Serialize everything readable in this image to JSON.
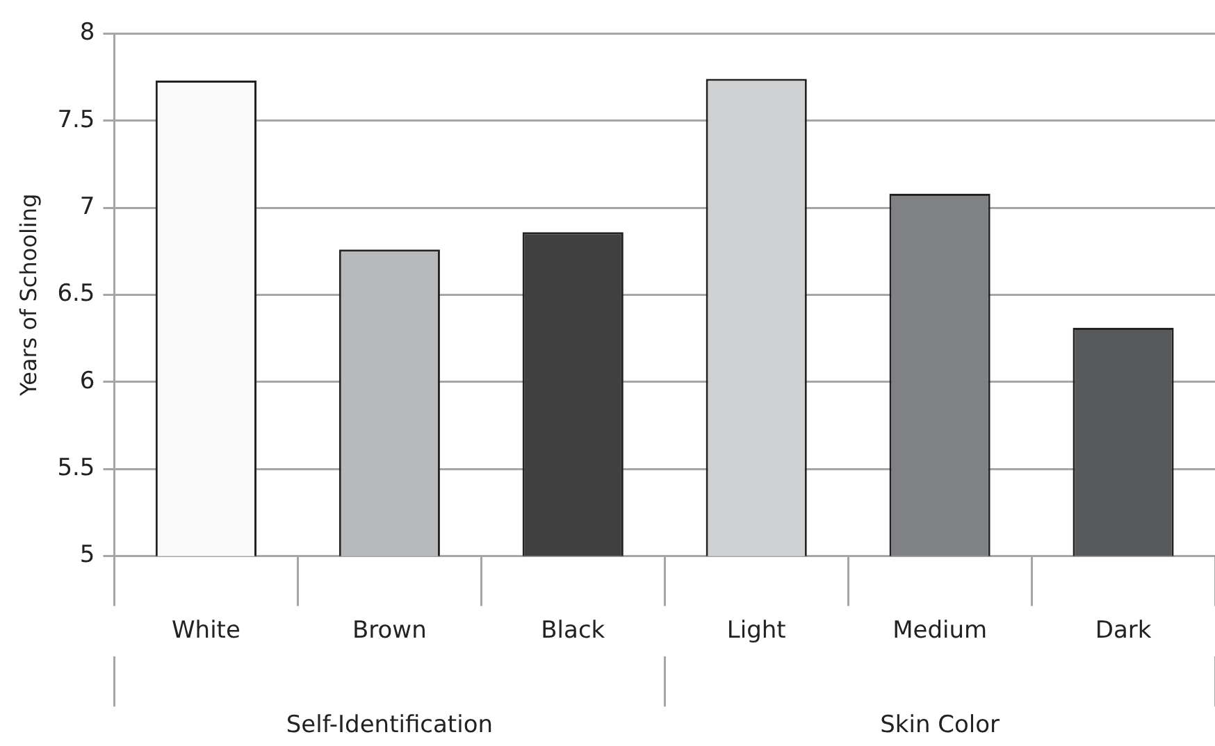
{
  "chart_data": {
    "type": "bar",
    "ylabel": "Years of Schooling",
    "categories": [
      "White",
      "Brown",
      "Black",
      "Light",
      "Medium",
      "Dark"
    ],
    "values": [
      7.73,
      6.76,
      6.86,
      7.74,
      7.08,
      6.31
    ],
    "colors": [
      "#f8f9f8",
      "#b8b9bc",
      "#404040",
      "#d0d1d3",
      "#808185",
      "#58595b"
    ],
    "ylim": [
      5,
      8
    ],
    "yticks": [
      5,
      5.5,
      6,
      6.5,
      7,
      7.5,
      8
    ],
    "grid": "y",
    "legend": false,
    "annotations": [
      "Self-Identification",
      "Skin Color"
    ]
  }
}
